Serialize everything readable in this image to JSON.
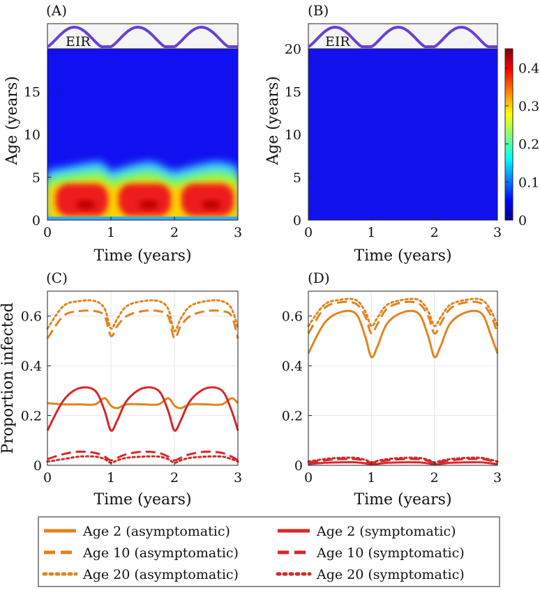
{
  "colors": {
    "eir_line": "#6a3fd6",
    "asymptomatic": "#e0841f",
    "symptomatic": "#d62728",
    "heat_background": "#1010f0",
    "eir_strip_bg": "#f5f5f5"
  },
  "panels": {
    "A": {
      "label": "(A)",
      "eir_label": "EIR"
    },
    "B": {
      "label": "(B)",
      "eir_label": "EIR"
    },
    "C": {
      "label": "(C)"
    },
    "D": {
      "label": "(D)"
    }
  },
  "colorbar": {
    "ticks": [
      "0",
      "0.1",
      "0.2",
      "0.3",
      "0.4"
    ],
    "values": [
      0,
      0.1,
      0.2,
      0.3,
      0.4
    ],
    "range": [
      0,
      0.45
    ],
    "colormap": "jet"
  },
  "chart_data": [
    {
      "panel": "A",
      "type": "heatmap",
      "xlabel": "Time (years)",
      "ylabel": "Age (years)",
      "xlim": [
        0,
        3
      ],
      "ylim": [
        0,
        20
      ],
      "xticks": [
        "0",
        "1",
        "2",
        "3"
      ],
      "yticks": [
        "0",
        "5",
        "10",
        "15"
      ],
      "description_values": {
        "peak_value": 0.45,
        "hotspot_ages": [
          0.5,
          4
        ],
        "cycles": 3
      },
      "eir_strip": {
        "label": "EIR",
        "peaks_at_years": [
          0.6,
          1.6,
          2.6
        ],
        "troughs_at_years": [
          0,
          1,
          2,
          3
        ]
      }
    },
    {
      "panel": "B",
      "type": "heatmap",
      "xlabel": "Time (years)",
      "ylabel": "Age (years)",
      "xlim": [
        0,
        3
      ],
      "ylim": [
        0,
        20
      ],
      "xticks": [
        "0",
        "1",
        "2",
        "3"
      ],
      "yticks": [
        "0",
        "5",
        "10",
        "15",
        "20"
      ],
      "description_values": {
        "uniform_value": 0.02
      },
      "eir_strip": {
        "label": "EIR",
        "peaks_at_years": [
          0.6,
          1.6,
          2.6
        ],
        "troughs_at_years": [
          0,
          1,
          2,
          3
        ]
      }
    },
    {
      "panel": "C",
      "type": "line",
      "xlabel": "Time (years)",
      "ylabel": "Proportion infected",
      "xlim": [
        0,
        3
      ],
      "ylim": [
        0,
        0.7
      ],
      "xticks": [
        "0",
        "1",
        "2",
        "3"
      ],
      "yticks": [
        "0",
        "0.2",
        "0.4",
        "0.6"
      ],
      "x": [
        0,
        0.25,
        0.5,
        0.75,
        0.9,
        1,
        1.1,
        1.25,
        1.5,
        1.75,
        1.9,
        2,
        2.1,
        2.25,
        2.5,
        2.75,
        2.9,
        3
      ],
      "series": [
        {
          "name": "Age 2 (asymptomatic)",
          "style": "solid",
          "group": "asymptomatic",
          "values": [
            0.25,
            0.245,
            0.245,
            0.245,
            0.27,
            0.24,
            0.23,
            0.245,
            0.245,
            0.245,
            0.27,
            0.24,
            0.23,
            0.245,
            0.245,
            0.245,
            0.27,
            0.25
          ]
        },
        {
          "name": "Age 10 (asymptomatic)",
          "style": "dashed",
          "group": "asymptomatic",
          "values": [
            0.51,
            0.6,
            0.62,
            0.62,
            0.6,
            0.52,
            0.56,
            0.6,
            0.62,
            0.62,
            0.6,
            0.51,
            0.56,
            0.6,
            0.62,
            0.62,
            0.6,
            0.51
          ]
        },
        {
          "name": "Age 20 (asymptomatic)",
          "style": "dotted",
          "group": "asymptomatic",
          "values": [
            0.55,
            0.64,
            0.66,
            0.66,
            0.63,
            0.55,
            0.59,
            0.64,
            0.66,
            0.66,
            0.63,
            0.54,
            0.59,
            0.64,
            0.66,
            0.66,
            0.63,
            0.55
          ]
        },
        {
          "name": "Age 2 (symptomatic)",
          "style": "solid",
          "group": "symptomatic",
          "values": [
            0.14,
            0.26,
            0.31,
            0.3,
            0.22,
            0.14,
            0.18,
            0.26,
            0.31,
            0.3,
            0.22,
            0.14,
            0.18,
            0.26,
            0.31,
            0.3,
            0.22,
            0.14
          ]
        },
        {
          "name": "Age 10 (symptomatic)",
          "style": "dashed",
          "group": "symptomatic",
          "values": [
            0.025,
            0.045,
            0.055,
            0.05,
            0.035,
            0.02,
            0.03,
            0.045,
            0.055,
            0.05,
            0.035,
            0.02,
            0.03,
            0.045,
            0.055,
            0.05,
            0.035,
            0.02
          ]
        },
        {
          "name": "Age 20 (symptomatic)",
          "style": "dotted",
          "group": "symptomatic",
          "values": [
            0.015,
            0.025,
            0.035,
            0.035,
            0.025,
            0.01,
            0.02,
            0.03,
            0.035,
            0.035,
            0.025,
            0.01,
            0.02,
            0.03,
            0.035,
            0.035,
            0.025,
            0.015
          ]
        }
      ]
    },
    {
      "panel": "D",
      "type": "line",
      "xlabel": "Time (years)",
      "ylabel": "",
      "xlim": [
        0,
        3
      ],
      "ylim": [
        0,
        0.7
      ],
      "xticks": [
        "0",
        "1",
        "2",
        "3"
      ],
      "yticks": [
        "0",
        "0.2",
        "0.4",
        "0.6"
      ],
      "x": [
        0,
        0.25,
        0.5,
        0.75,
        0.9,
        1,
        1.1,
        1.25,
        1.5,
        1.75,
        1.9,
        2,
        2.1,
        2.25,
        2.5,
        2.75,
        2.9,
        3
      ],
      "series": [
        {
          "name": "Age 2 (asymptomatic)",
          "style": "solid",
          "group": "asymptomatic",
          "values": [
            0.45,
            0.57,
            0.615,
            0.61,
            0.52,
            0.435,
            0.48,
            0.57,
            0.615,
            0.61,
            0.52,
            0.435,
            0.48,
            0.57,
            0.615,
            0.61,
            0.52,
            0.45
          ]
        },
        {
          "name": "Age 10 (asymptomatic)",
          "style": "dashed",
          "group": "asymptomatic",
          "values": [
            0.53,
            0.63,
            0.655,
            0.65,
            0.6,
            0.53,
            0.57,
            0.63,
            0.655,
            0.65,
            0.6,
            0.53,
            0.57,
            0.63,
            0.655,
            0.65,
            0.6,
            0.53
          ]
        },
        {
          "name": "Age 20 (asymptomatic)",
          "style": "dotted",
          "group": "asymptomatic",
          "values": [
            0.56,
            0.645,
            0.665,
            0.665,
            0.62,
            0.56,
            0.595,
            0.645,
            0.665,
            0.665,
            0.62,
            0.56,
            0.595,
            0.645,
            0.665,
            0.665,
            0.62,
            0.56
          ]
        },
        {
          "name": "Age 2 (symptomatic)",
          "style": "solid",
          "group": "symptomatic",
          "values": [
            0.005,
            0.01,
            0.012,
            0.012,
            0.008,
            0.004,
            0.006,
            0.01,
            0.012,
            0.012,
            0.008,
            0.004,
            0.006,
            0.01,
            0.012,
            0.012,
            0.008,
            0.005
          ]
        },
        {
          "name": "Age 10 (symptomatic)",
          "style": "dashed",
          "group": "symptomatic",
          "values": [
            0.01,
            0.02,
            0.025,
            0.025,
            0.018,
            0.01,
            0.014,
            0.02,
            0.025,
            0.025,
            0.018,
            0.01,
            0.014,
            0.02,
            0.025,
            0.025,
            0.018,
            0.01
          ]
        },
        {
          "name": "Age 20 (symptomatic)",
          "style": "dotted",
          "group": "symptomatic",
          "values": [
            0.015,
            0.025,
            0.03,
            0.03,
            0.022,
            0.012,
            0.018,
            0.025,
            0.03,
            0.03,
            0.022,
            0.012,
            0.018,
            0.025,
            0.03,
            0.03,
            0.022,
            0.015
          ]
        }
      ]
    }
  ],
  "legend": {
    "items": [
      {
        "label": "Age 2 (asymptomatic)",
        "style": "solid",
        "group": "asymptomatic"
      },
      {
        "label": "Age 2 (symptomatic)",
        "style": "solid",
        "group": "symptomatic"
      },
      {
        "label": "Age 10 (asymptomatic)",
        "style": "dashed",
        "group": "asymptomatic"
      },
      {
        "label": "Age 10 (symptomatic)",
        "style": "dashed",
        "group": "symptomatic"
      },
      {
        "label": "Age 20 (asymptomatic)",
        "style": "dotted",
        "group": "asymptomatic"
      },
      {
        "label": "Age 20 (symptomatic)",
        "style": "dotted",
        "group": "symptomatic"
      }
    ]
  }
}
